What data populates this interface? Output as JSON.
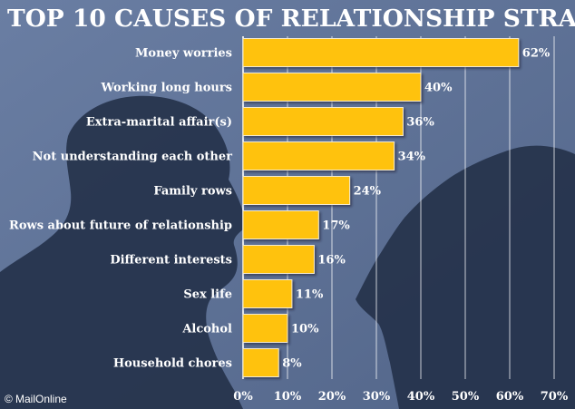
{
  "chart_data": {
    "type": "bar",
    "orientation": "horizontal",
    "title": "TOP 10 CAUSES OF RELATIONSHIP STRAIN",
    "categories": [
      "Money worries",
      "Working long hours",
      "Extra-marital affair(s)",
      "Not understanding each other",
      "Family rows",
      "Rows about future of relationship",
      "Different interests",
      "Sex life",
      "Alcohol",
      "Household chores"
    ],
    "values": [
      62,
      40,
      36,
      34,
      24,
      17,
      16,
      11,
      10,
      8
    ],
    "value_labels": [
      "62%",
      "40%",
      "36%",
      "34%",
      "24%",
      "17%",
      "16%",
      "11%",
      "10%",
      "8%"
    ],
    "xlim": [
      0,
      70
    ],
    "ticks": [
      0,
      10,
      20,
      30,
      40,
      50,
      60,
      70
    ],
    "tick_labels": [
      "0%",
      "10%",
      "20%",
      "30%",
      "40%",
      "50%",
      "60%",
      "70%"
    ],
    "xlabel": "",
    "ylabel": "",
    "grid": true,
    "bar_color": "#ffc20e",
    "background_color": "#5b6f94"
  },
  "credit": {
    "symbol": "©",
    "text": "MailOnline"
  }
}
